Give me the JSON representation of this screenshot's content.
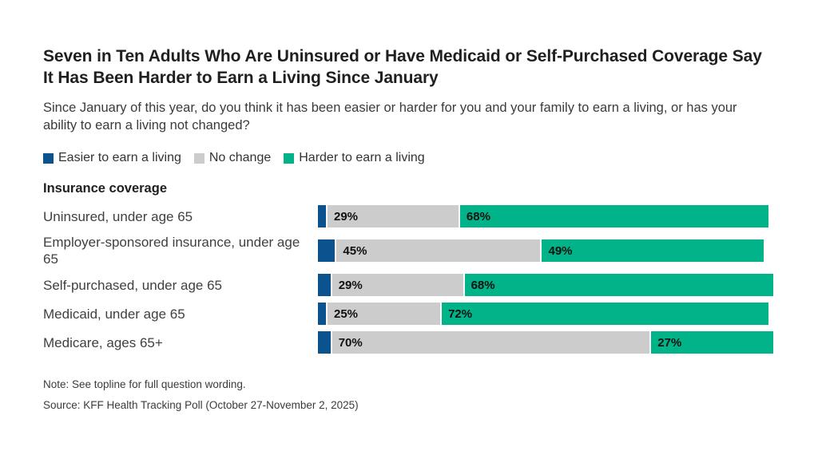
{
  "title": "Seven in Ten Adults Who Are Uninsured or Have Medicaid or Self-Purchased Coverage Say It Has Been Harder to Earn a Living Since January",
  "subtitle": "Since January of this year, do you think it has been easier or harder for you and your family to earn a living, or has your ability to earn a living not changed?",
  "legend": {
    "items": [
      {
        "label": "Easier to earn a living",
        "color_key": "easier"
      },
      {
        "label": "No change",
        "color_key": "no_change"
      },
      {
        "label": "Harder to earn a living",
        "color_key": "harder"
      }
    ]
  },
  "group_label": "Insurance coverage",
  "colors": {
    "easier": "#0a538f",
    "no_change": "#cccccc",
    "harder": "#00b388",
    "title_text": "#1f1f1f",
    "body_text": "#3b3b3b"
  },
  "chart_data": {
    "type": "bar",
    "subtype": "horizontal-stacked",
    "title": "Seven in Ten Adults Who Are Uninsured or Have Medicaid or Self-Purchased Coverage Say It Has Been Harder to Earn a Living Since January",
    "question": "Since January of this year, do you think it has been easier or harder for you and your family to earn a living, or has your ability to earn a living not changed?",
    "categories": [
      "Uninsured, under age 65",
      "Employer-sponsored insurance, under age 65",
      "Self-purchased, under age 65",
      "Medicaid, under age 65",
      "Medicare, ages 65+"
    ],
    "series": [
      {
        "name": "Easier to earn a living",
        "color_key": "easier",
        "show_labels": false,
        "values_estimated_unlabeled": true,
        "values": [
          2,
          4,
          3,
          2,
          3
        ]
      },
      {
        "name": "No change",
        "color_key": "no_change",
        "show_labels": true,
        "values": [
          29,
          45,
          29,
          25,
          70
        ]
      },
      {
        "name": "Harder to earn a living",
        "color_key": "harder",
        "show_labels": true,
        "values": [
          68,
          49,
          68,
          72,
          27
        ]
      }
    ],
    "xlim": [
      0,
      100
    ],
    "legend_position": "top",
    "grid": false,
    "value_label_format": "{v}%"
  },
  "footer": {
    "note": "Note: See topline for full question wording.",
    "source": "Source: KFF Health Tracking Poll (October 27-November 2, 2025)"
  }
}
